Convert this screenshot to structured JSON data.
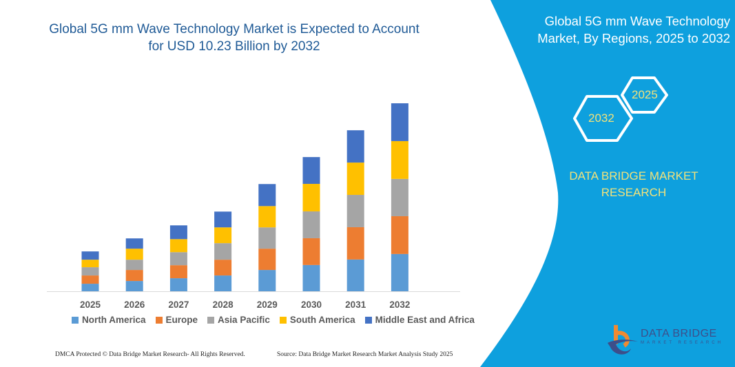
{
  "title": "Global 5G mm Wave Technology Market is Expected to Account for USD 10.23 Billion by 2032",
  "side_panel": {
    "title": "Global 5G mm Wave Technology Market, By Regions, 2025 to 2032",
    "hex_start": "2025",
    "hex_end": "2032",
    "brand": "DATA BRIDGE MARKET RESEARCH",
    "color": "#0ea0de"
  },
  "logo": {
    "name": "DATA BRIDGE",
    "sub": "MARKET RESEARCH"
  },
  "footer": {
    "left": "DMCA Protected © Data Bridge Market Research-  All Rights Reserved.",
    "right": "Source: Data Bridge Market Research  Market Analysis Study 2025"
  },
  "chart_data": {
    "type": "bar",
    "stacked": true,
    "title": "Global 5G mm Wave Technology Market is Expected to Account for USD 10.23 Billion by 2032",
    "xlabel": "",
    "ylabel": "",
    "ylim": [
      0,
      10.5
    ],
    "grid": false,
    "legend": "bottom",
    "categories": [
      "2025",
      "2026",
      "2027",
      "2028",
      "2029",
      "2030",
      "2031",
      "2032"
    ],
    "series": [
      {
        "name": "North America",
        "color": "#5b9bd5",
        "values": [
          0.41,
          0.56,
          0.71,
          0.86,
          1.16,
          1.43,
          1.73,
          2.03
        ]
      },
      {
        "name": "Europe",
        "color": "#ed7d31",
        "values": [
          0.45,
          0.6,
          0.71,
          0.86,
          1.16,
          1.46,
          1.76,
          2.06
        ]
      },
      {
        "name": "Asia Pacific",
        "color": "#a5a5a5",
        "values": [
          0.45,
          0.56,
          0.71,
          0.9,
          1.16,
          1.46,
          1.76,
          2.03
        ]
      },
      {
        "name": "South America",
        "color": "#ffc000",
        "values": [
          0.41,
          0.6,
          0.71,
          0.86,
          1.16,
          1.5,
          1.76,
          2.06
        ]
      },
      {
        "name": "Middle East and Africa",
        "color": "#4472c4",
        "values": [
          0.45,
          0.56,
          0.75,
          0.86,
          1.2,
          1.46,
          1.76,
          2.06
        ]
      }
    ]
  }
}
